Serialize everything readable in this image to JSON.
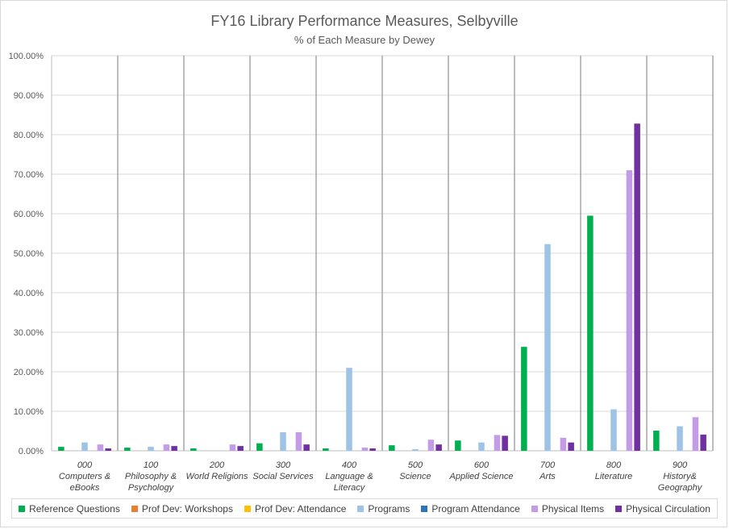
{
  "chart_data": {
    "type": "bar",
    "title": "FY16 Library Performance Measures, Selbyville",
    "subtitle": "% of Each Measure by Dewey",
    "xlabel": "",
    "ylabel": "",
    "ylim": [
      0,
      100
    ],
    "y_ticks": [
      "0.00%",
      "10.00%",
      "20.00%",
      "30.00%",
      "40.00%",
      "50.00%",
      "60.00%",
      "70.00%",
      "80.00%",
      "90.00%",
      "100.00%"
    ],
    "grid": true,
    "legend_position": "bottom",
    "categories": [
      [
        "000",
        "Computers &",
        "eBooks"
      ],
      [
        "100",
        "Philosophy &",
        "Psychology"
      ],
      [
        "200",
        "World Religions"
      ],
      [
        "300",
        "Social Services"
      ],
      [
        "400",
        "Language &",
        "Literacy"
      ],
      [
        "500",
        "Science"
      ],
      [
        "600",
        "Applied Science"
      ],
      [
        "700",
        "Arts"
      ],
      [
        "800",
        "Literature"
      ],
      [
        "900",
        "History&",
        "Geography"
      ]
    ],
    "series": [
      {
        "name": "Reference Questions",
        "color": "#00b050",
        "values": [
          1.0,
          0.8,
          0.6,
          1.9,
          0.6,
          1.4,
          2.6,
          26.3,
          59.5,
          5.1
        ]
      },
      {
        "name": "Prof Dev: Workshops",
        "color": "#ed7d31",
        "values": [
          0,
          0,
          0,
          0,
          0,
          0,
          0,
          0,
          0,
          0
        ]
      },
      {
        "name": "Prof Dev: Attendance",
        "color": "#ffc000",
        "values": [
          0,
          0,
          0,
          0,
          0,
          0,
          0,
          0,
          0,
          0
        ]
      },
      {
        "name": "Programs",
        "color": "#9dc3e6",
        "values": [
          2.1,
          1.0,
          0,
          4.7,
          21.0,
          0.4,
          2.1,
          52.3,
          10.5,
          6.2
        ]
      },
      {
        "name": "Program Attendance",
        "color": "#2e75b6",
        "values": [
          0,
          0,
          0,
          0,
          0,
          0,
          0,
          0,
          0,
          0
        ]
      },
      {
        "name": "Physical Items",
        "color": "#c49be6",
        "values": [
          1.6,
          1.6,
          1.6,
          4.7,
          0.8,
          2.8,
          4.0,
          3.3,
          71.0,
          8.5
        ]
      },
      {
        "name": "Physical Circulation",
        "color": "#7030a0",
        "values": [
          0.6,
          1.2,
          1.2,
          1.6,
          0.6,
          1.6,
          3.8,
          2.1,
          82.8,
          4.1
        ]
      }
    ]
  }
}
